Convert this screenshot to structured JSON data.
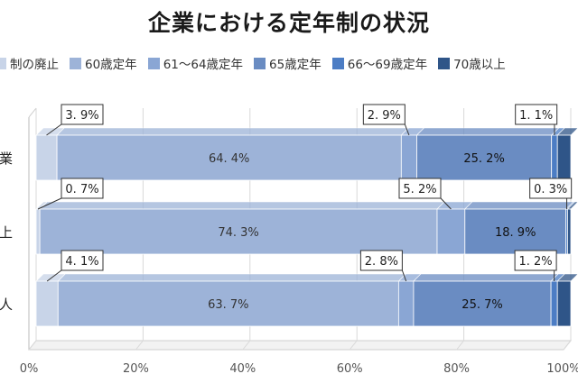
{
  "title": "企業における定年制の状況",
  "colors": {
    "abolished": "#c8d4e8",
    "age60": "#9db3d8",
    "age61_64": "#8aa6d4",
    "age65": "#6a8cc2",
    "age66_69": "#4c7dc4",
    "age70": "#2f5588"
  },
  "chart_data": {
    "type": "bar",
    "orientation": "horizontal",
    "stacked": true,
    "categories": [
      "業",
      "上",
      "人"
    ],
    "series": [
      {
        "name": "制の廃止",
        "values": [
          3.9,
          0.7,
          4.1
        ]
      },
      {
        "name": "60歳定年",
        "values": [
          64.4,
          74.3,
          63.7
        ]
      },
      {
        "name": "61～64歳定年",
        "values": [
          2.9,
          5.2,
          2.8
        ]
      },
      {
        "name": "65歳定年",
        "values": [
          25.2,
          18.9,
          25.7
        ]
      },
      {
        "name": "66～69歳定年",
        "values": [
          1.1,
          0.3,
          1.2
        ]
      },
      {
        "name": "70歳以上",
        "values": [
          2.5,
          0.6,
          2.5
        ]
      }
    ],
    "data_labels": [
      [
        "3. 9%",
        "64. 4%",
        "2. 9%",
        "25. 2%",
        "1. 1%"
      ],
      [
        "0. 7%",
        "74. 3%",
        "5. 2%",
        "18. 9%",
        "0. 3%"
      ],
      [
        "4. 1%",
        "63. 7%",
        "2. 8%",
        "25. 7%",
        "1. 2%"
      ]
    ],
    "xlim": [
      0,
      100
    ],
    "x_ticks": [
      "0%",
      "20%",
      "40%",
      "60%",
      "80%",
      "100%"
    ],
    "grid": true,
    "legend_position": "top"
  }
}
